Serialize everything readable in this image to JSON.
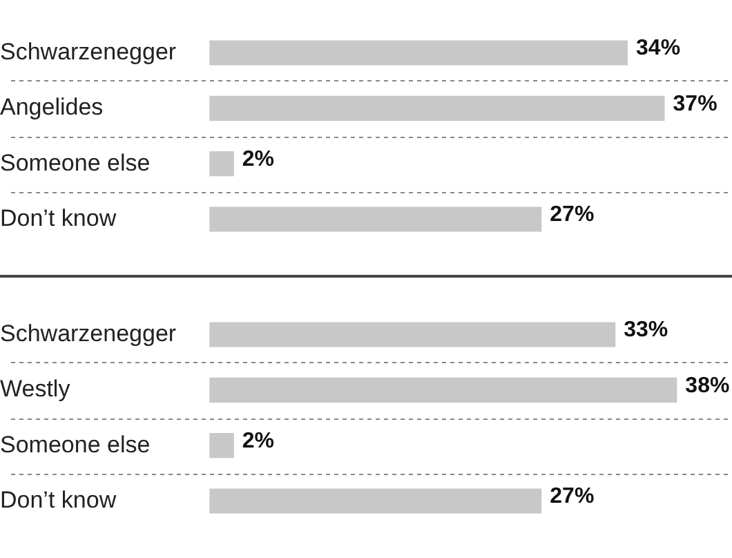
{
  "chart_data": [
    {
      "type": "bar",
      "orientation": "horizontal",
      "categories": [
        "Schwarzenegger",
        "Angelides",
        "Someone else",
        "Don’t know"
      ],
      "values": [
        34,
        37,
        2,
        27
      ],
      "value_labels": [
        "34%",
        "37%",
        "2%",
        "27%"
      ],
      "color": "#c8c8c8",
      "tick_labels": "y",
      "grid": "y",
      "line_style": "dashed"
    },
    {
      "type": "bar",
      "orientation": "horizontal",
      "categories": [
        "Schwarzenegger",
        "Westly",
        "Someone else",
        "Don’t know"
      ],
      "values": [
        33,
        38,
        2,
        27
      ],
      "value_labels": [
        "33%",
        "38%",
        "2%",
        "27%"
      ],
      "color": "#c8c8c8",
      "tick_labels": "y",
      "grid": "y",
      "line_style": "dashed"
    }
  ]
}
